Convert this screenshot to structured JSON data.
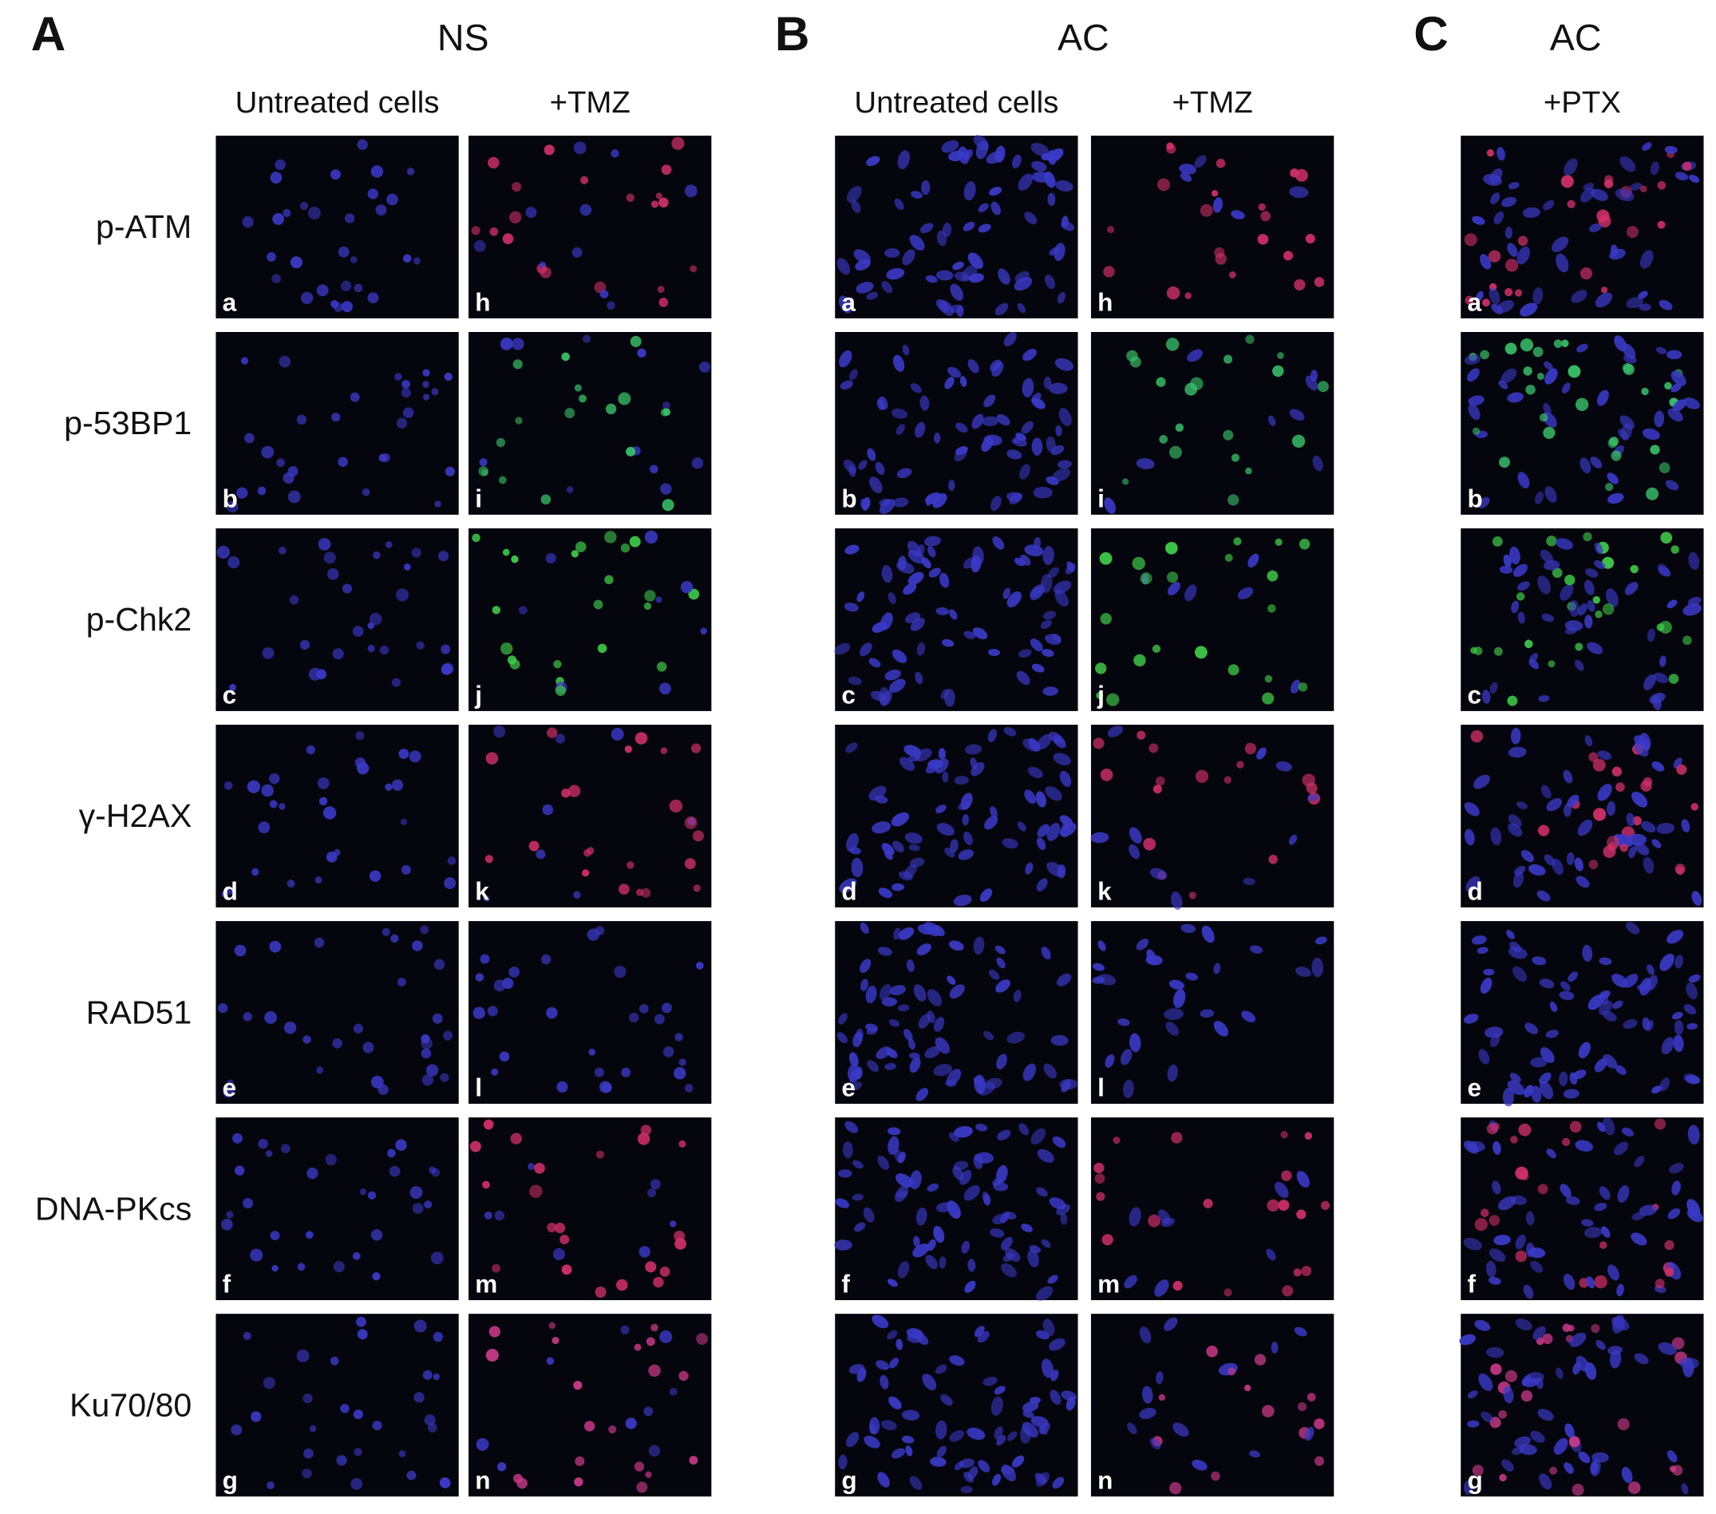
{
  "panels": [
    {
      "letter": "A",
      "condition": "NS",
      "columns": [
        {
          "label": "Untreated cells",
          "tiles": [
            "a",
            "b",
            "c",
            "d",
            "e",
            "f",
            "g"
          ]
        },
        {
          "label": "+TMZ",
          "tiles": [
            "h",
            "i",
            "j",
            "k",
            "l",
            "m",
            "n"
          ]
        }
      ]
    },
    {
      "letter": "B",
      "condition": "AC",
      "columns": [
        {
          "label": "Untreated cells",
          "tiles": [
            "a",
            "b",
            "c",
            "d",
            "e",
            "f",
            "g"
          ]
        },
        {
          "label": "+TMZ",
          "tiles": [
            "h",
            "i",
            "j",
            "k",
            "l",
            "m",
            "n"
          ]
        }
      ]
    },
    {
      "letter": "C",
      "condition": "AC",
      "columns": [
        {
          "label": "+PTX",
          "tiles": [
            "a",
            "b",
            "c",
            "d",
            "e",
            "f",
            "g"
          ]
        }
      ]
    }
  ],
  "row_labels": [
    "p-ATM",
    "p-53BP1",
    "p-Chk2",
    "γ-H2AX",
    "RAD51",
    "DNA-PKcs",
    "Ku70/80"
  ]
}
